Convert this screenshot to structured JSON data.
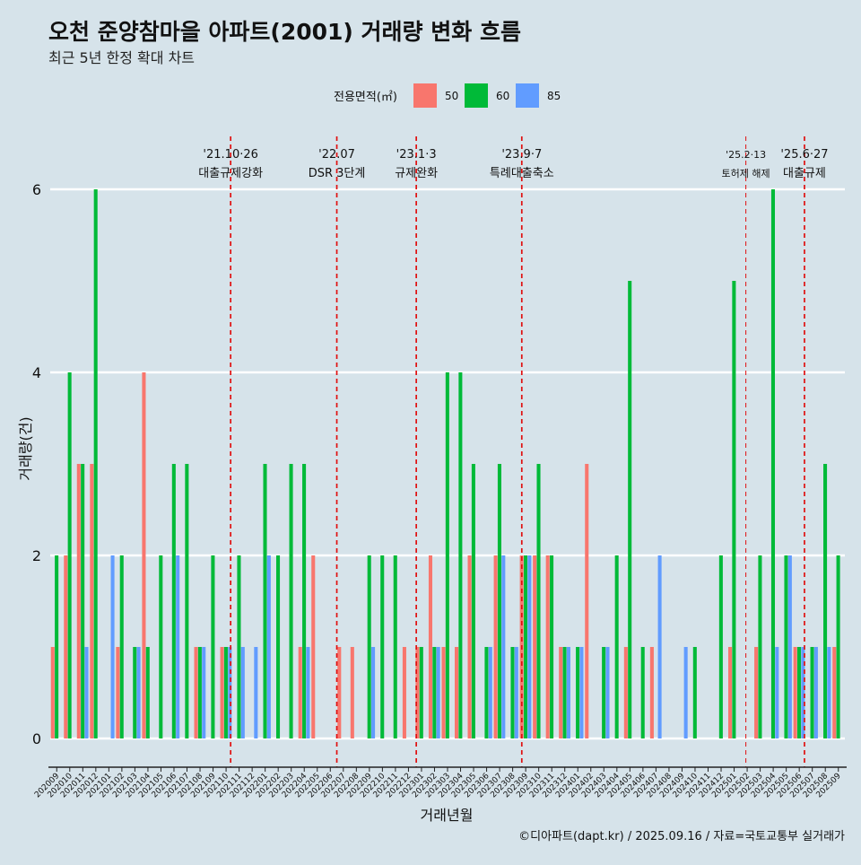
{
  "chart_data": {
    "type": "bar",
    "title": "오천 준양참마을 아파트(2001) 거래량 변화 흐름",
    "subtitle": "최근 5년 한정 확대 차트",
    "xlabel": "거래년월",
    "ylabel": "거래량(건)",
    "ylim": [
      0,
      6
    ],
    "yticks": [
      0,
      2,
      4,
      6
    ],
    "grid": true,
    "legend": {
      "title": "전용면적(㎡)",
      "placement": "top"
    },
    "caption": "©디아파트(dapt.kr) / 2025.09.16 / 자료=국토교통부 실거래가",
    "months": [
      "202009",
      "202010",
      "202011",
      "202012",
      "202101",
      "202102",
      "202103",
      "202104",
      "202105",
      "202106",
      "202107",
      "202108",
      "202109",
      "202110",
      "202111",
      "202112",
      "202201",
      "202202",
      "202203",
      "202204",
      "202205",
      "202206",
      "202207",
      "202208",
      "202209",
      "202210",
      "202211",
      "202212",
      "202301",
      "202302",
      "202303",
      "202304",
      "202305",
      "202306",
      "202307",
      "202308",
      "202309",
      "202310",
      "202311",
      "202312",
      "202401",
      "202402",
      "202403",
      "202404",
      "202405",
      "202406",
      "202407",
      "202408",
      "202409",
      "202410",
      "202411",
      "202412",
      "202501",
      "202502",
      "202503",
      "202504",
      "202505",
      "202506",
      "202507",
      "202508",
      "202509"
    ],
    "series": [
      {
        "name": "50",
        "color": "#f8766d",
        "values": [
          1,
          2,
          3,
          3,
          0,
          1,
          0,
          4,
          0,
          0,
          0,
          1,
          0,
          1,
          0,
          0,
          0,
          0,
          0,
          1,
          2,
          0,
          1,
          1,
          0,
          0,
          0,
          1,
          1,
          2,
          1,
          1,
          2,
          0,
          2,
          0,
          2,
          2,
          2,
          1,
          0,
          3,
          0,
          0,
          1,
          0,
          1,
          0,
          0,
          0,
          0,
          0,
          1,
          0,
          1,
          0,
          0,
          1,
          0,
          0,
          1
        ]
      },
      {
        "name": "60",
        "color": "#00ba38",
        "values": [
          2,
          4,
          3,
          6,
          0,
          2,
          1,
          1,
          2,
          3,
          3,
          1,
          2,
          1,
          2,
          0,
          3,
          2,
          3,
          3,
          0,
          0,
          0,
          0,
          2,
          2,
          2,
          0,
          1,
          1,
          4,
          4,
          3,
          1,
          3,
          1,
          2,
          3,
          2,
          1,
          1,
          0,
          1,
          2,
          5,
          1,
          0,
          0,
          0,
          1,
          0,
          2,
          5,
          0,
          2,
          6,
          2,
          1,
          1,
          3,
          2
        ]
      },
      {
        "name": "85",
        "color": "#619cff",
        "values": [
          0,
          0,
          1,
          0,
          2,
          0,
          1,
          0,
          0,
          2,
          0,
          1,
          0,
          1,
          1,
          1,
          2,
          0,
          0,
          1,
          0,
          0,
          0,
          0,
          1,
          0,
          0,
          0,
          0,
          1,
          0,
          0,
          0,
          1,
          2,
          1,
          2,
          0,
          0,
          1,
          1,
          0,
          1,
          0,
          0,
          0,
          2,
          0,
          1,
          0,
          0,
          0,
          0,
          0,
          0,
          1,
          2,
          1,
          1,
          1,
          0
        ]
      }
    ],
    "events": [
      {
        "date": "'21.10·26",
        "label": "대출규제강화",
        "month": "202110",
        "pos": 0.85
      },
      {
        "date": "'22.07",
        "label": "DSR 3단계",
        "month": "202207",
        "pos": 0.0
      },
      {
        "date": "'23.1·3",
        "label": "규제완화",
        "month": "202301",
        "pos": 0.1
      },
      {
        "date": "'23.9·7",
        "label": "특례대출축소",
        "month": "202309",
        "pos": 0.2
      },
      {
        "date": "'25.2·13",
        "label": "토허제 해제",
        "month": "202502",
        "pos": 0.4,
        "thin": true
      },
      {
        "date": "'25.6·27",
        "label": "대출규제",
        "month": "202506",
        "pos": 0.9
      }
    ]
  }
}
